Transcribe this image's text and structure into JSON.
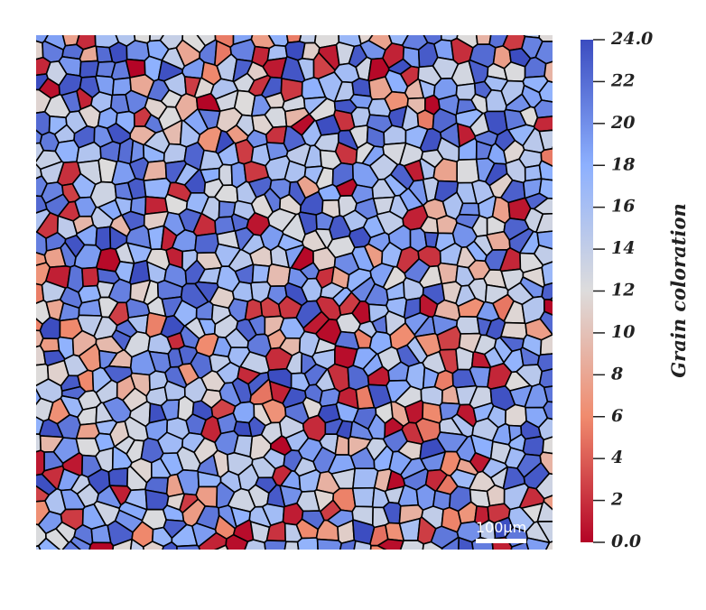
{
  "colorbar": {
    "label": "Grain coloration",
    "lim": [
      0,
      24
    ],
    "ticks": [
      {
        "value": 0,
        "label": "0.0"
      },
      2,
      4,
      6,
      8,
      10,
      12,
      14,
      16,
      18,
      20,
      22,
      {
        "value": 24,
        "label": "24.0"
      }
    ]
  },
  "scale_bar": {
    "label": "100μm"
  }
}
